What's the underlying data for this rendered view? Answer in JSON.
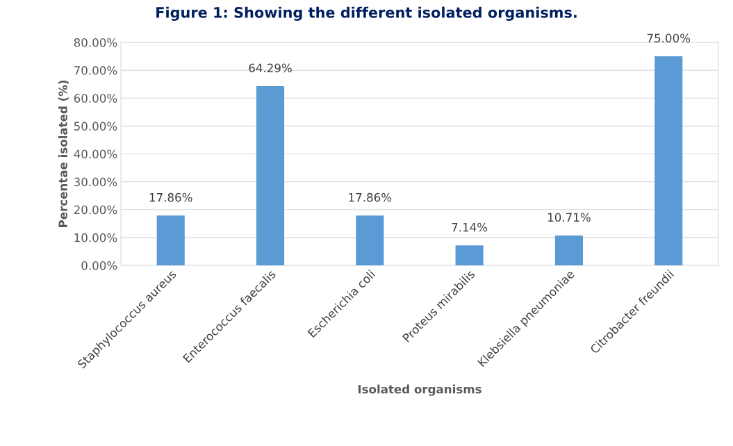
{
  "chart_data": {
    "type": "bar",
    "title": "Figure 1: Showing the different isolated organisms.",
    "xlabel": "Isolated organisms",
    "ylabel": "Percentae isolated (%)",
    "categories": [
      "Staphylococcus aureus",
      "Enterococcus faecalis",
      "Escherichia coli",
      "Proteus mirabilis",
      "Klebsiella pneumoniae",
      "Citrobacter freundii"
    ],
    "values": [
      17.86,
      64.29,
      17.86,
      7.14,
      10.71,
      75.0
    ],
    "value_labels": [
      "17.86%",
      "64.29%",
      "17.86%",
      "7.14%",
      "10.71%",
      "75.00%"
    ],
    "color": "#5b9bd5",
    "ylim": [
      0,
      80
    ],
    "yticks": [
      {
        "value": 0,
        "label": "0.00%"
      },
      {
        "value": 10,
        "label": "10.00%"
      },
      {
        "value": 20,
        "label": "20.00%"
      },
      {
        "value": 30,
        "label": "30.00%"
      },
      {
        "value": 40,
        "label": "40.00%"
      },
      {
        "value": 50,
        "label": "50.00%"
      },
      {
        "value": 60,
        "label": "60.00%"
      },
      {
        "value": 70,
        "label": "70.00%"
      },
      {
        "value": 80,
        "label": "80.00%"
      }
    ],
    "grid": "y",
    "legend": false
  }
}
